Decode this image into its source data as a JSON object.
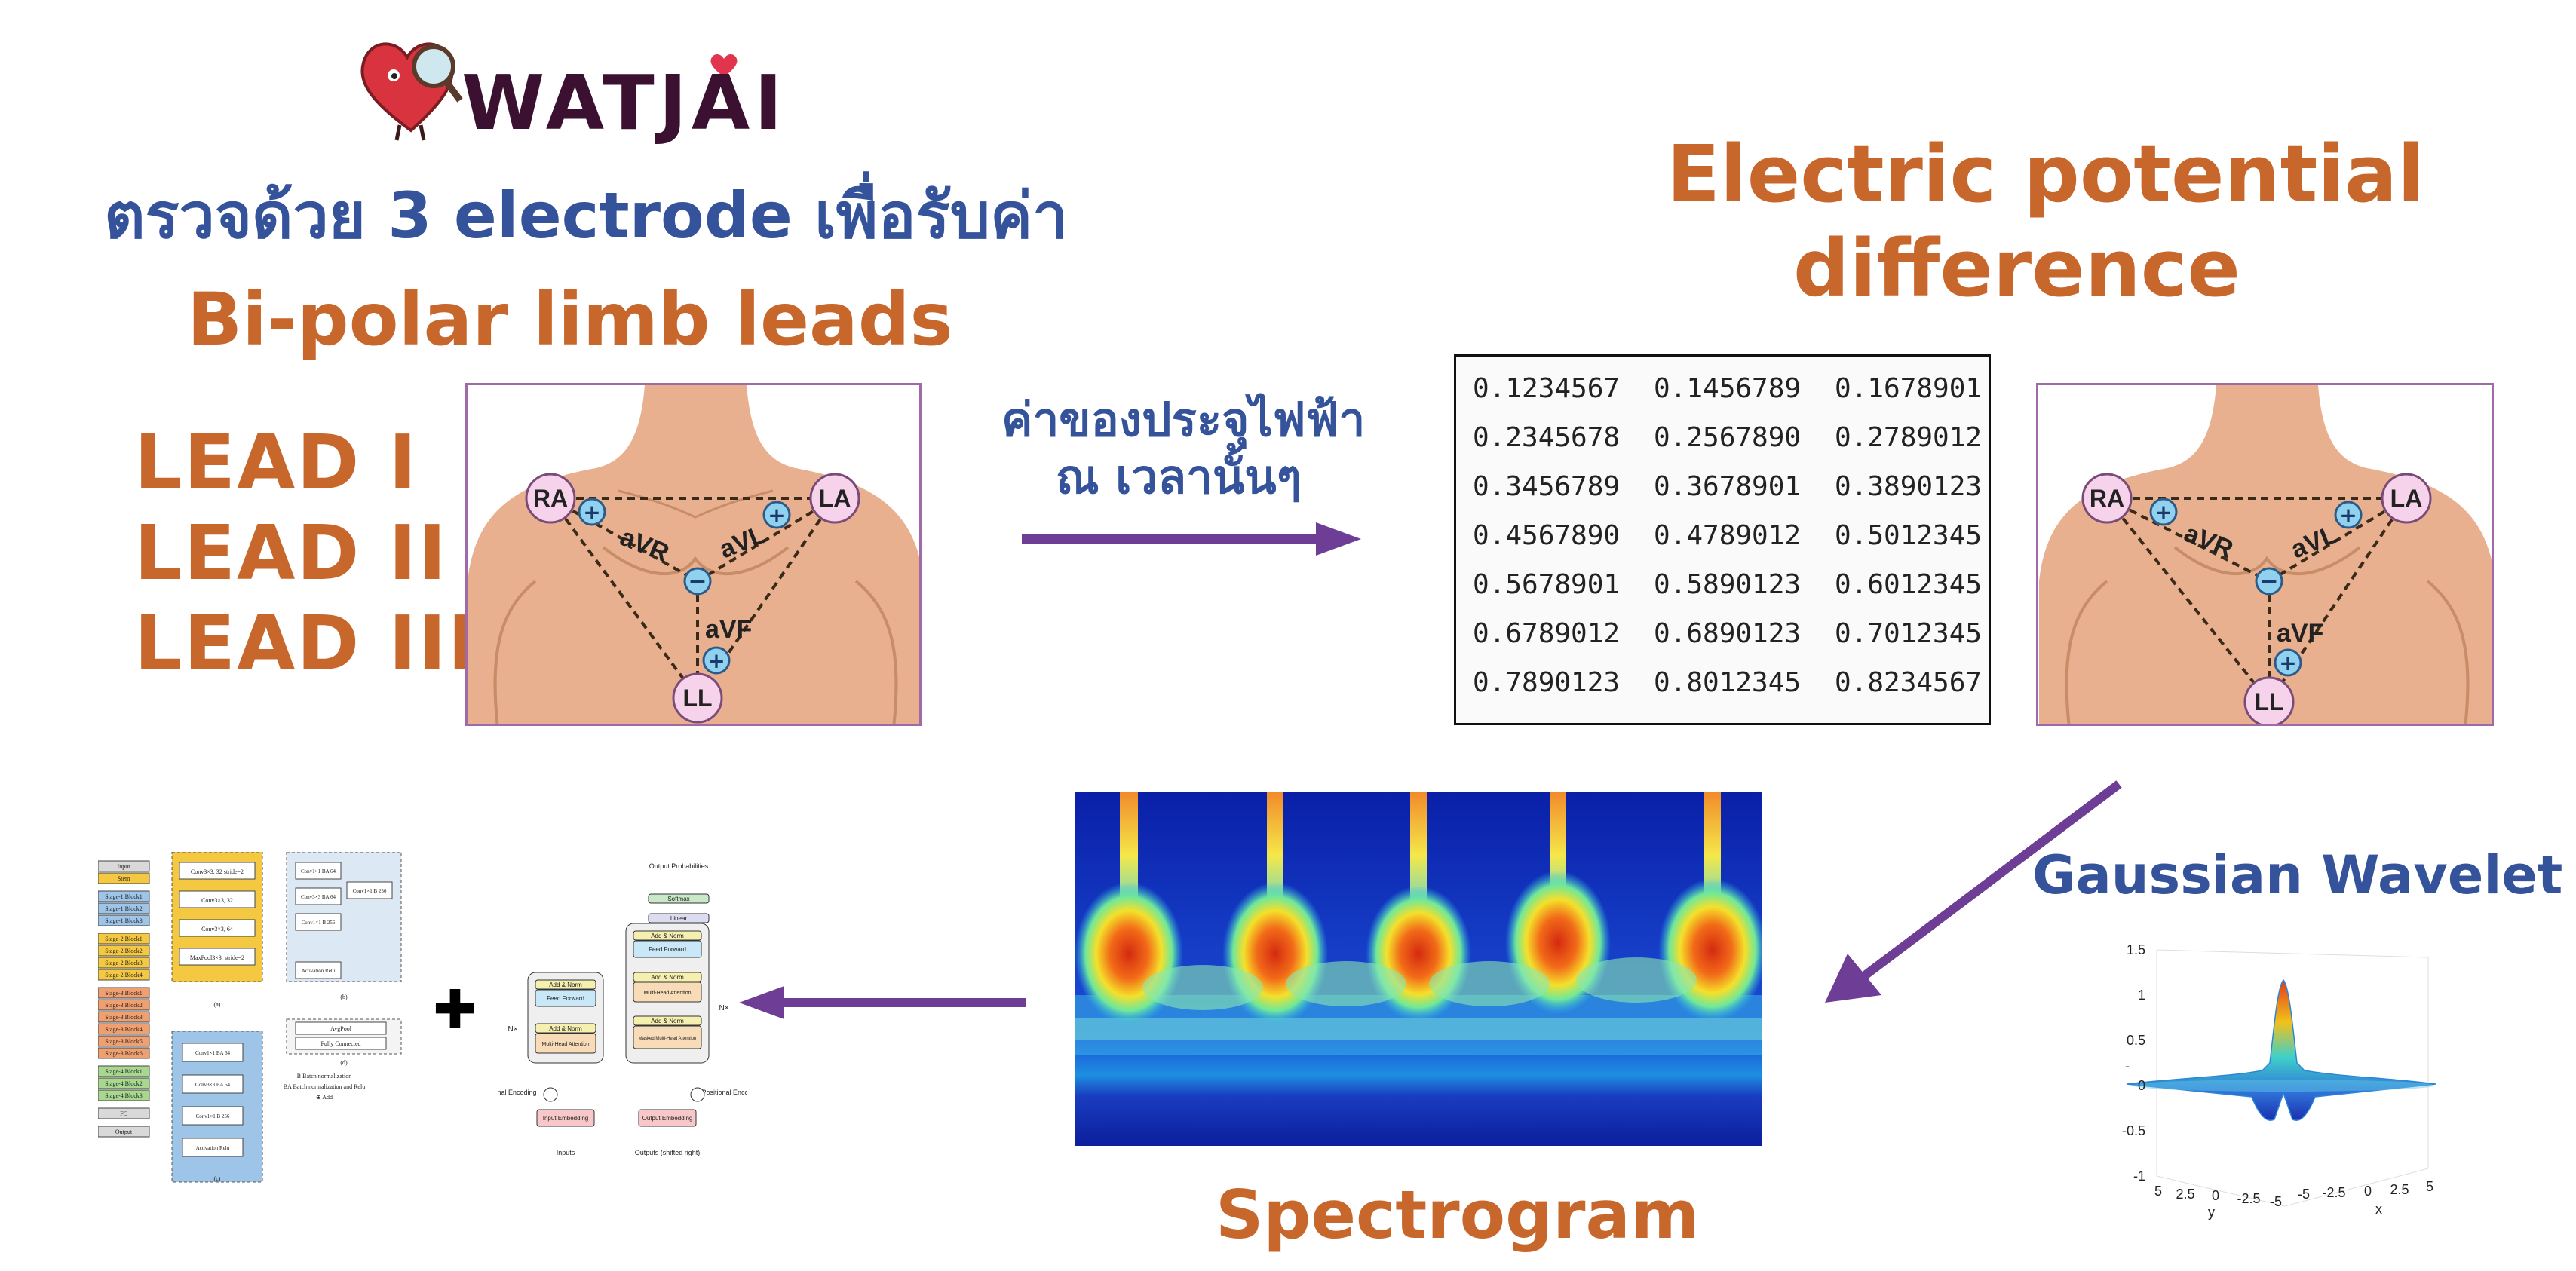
{
  "logo": {
    "text": "WATJAI"
  },
  "left": {
    "thai_line": "ตรวจด้วย 3 electrode เพื่อรับค่า",
    "bipolar": "Bi-polar limb leads",
    "leads": [
      "LEAD  I",
      "LEAD  II",
      "LEAD  III"
    ]
  },
  "chest_labels": {
    "ra": "RA",
    "la": "LA",
    "ll": "LL",
    "avr": "aVR",
    "avl": "aVL",
    "avf": "aVF"
  },
  "arrow_caption": {
    "line1": "ค่าของประจุไฟฟ้า",
    "line2": "ณ เวลานั้นๆ"
  },
  "right_title": {
    "line1": "Electric potential",
    "line2": "difference"
  },
  "table": {
    "rows": [
      [
        "0.1234567",
        "0.1456789",
        "0.1678901"
      ],
      [
        "0.2345678",
        "0.2567890",
        "0.2789012"
      ],
      [
        "0.3456789",
        "0.3678901",
        "0.3890123"
      ],
      [
        "0.4567890",
        "0.4789012",
        "0.5012345"
      ],
      [
        "0.5678901",
        "0.5890123",
        "0.6012345"
      ],
      [
        "0.6789012",
        "0.6890123",
        "0.7012345"
      ],
      [
        "0.7890123",
        "0.8012345",
        "0.8234567"
      ]
    ]
  },
  "gaussian": {
    "title": "Gaussian Wavelet",
    "z_ticks": [
      "1.5",
      "1",
      "0.5",
      "0",
      "-0.5",
      "-1"
    ],
    "y_ticks": [
      "5",
      "2.5",
      "0",
      "-2.5",
      "-5"
    ],
    "x_ticks": [
      "-5",
      "-2.5",
      "0",
      "2.5",
      "5"
    ],
    "y_label": "y",
    "x_label": "x",
    "z_label": "-"
  },
  "spectrogram_label": "Spectrogram",
  "cnn": {
    "col_a": [
      "Input",
      "Stem",
      "Stage-1 Block1",
      "Stage-1 Block2",
      "Stage-1 Block3",
      "Stage-2 Block1",
      "Stage-2 Block2",
      "Stage-2 Block3",
      "Stage-2 Block4",
      "Stage-3 Block1",
      "Stage-3 Block2",
      "Stage-3 Block3",
      "Stage-3 Block4",
      "Stage-3 Block5",
      "Stage-3 Block6",
      "Stage-4 Block1",
      "Stage-4 Block2",
      "Stage-4 Block3",
      "FC",
      "Output"
    ],
    "col_b_top": [
      "Conv3×3, 32 stride=2",
      "Conv3×3, 32",
      "Conv3×3, 64",
      "MaxPool3×3, stride=2"
    ],
    "col_b_bottom": [
      "Conv1×1 BA 64",
      "Conv3×3 BA 64",
      "Conv1×1 B 256",
      "Activation Relu"
    ],
    "col_c_top": [
      "Conv1×1 BA 64",
      "Conv3×3 BA 64",
      "Conv1×1 B 256",
      "Conv1×1 B 256",
      "Activation Relu"
    ],
    "col_c_bottom": [
      "AvgPool",
      "Fully Connected"
    ],
    "legend": [
      "B  Batch normalization",
      "BA  Batch normalization and Relu",
      "⊕  Add"
    ],
    "captions": [
      "(a)",
      "(b)",
      "(c)",
      "(d)"
    ]
  },
  "transformer": {
    "output_probs": "Output Probabilities",
    "softmax": "Softmax",
    "linear": "Linear",
    "add_norm": "Add & Norm",
    "feed_forward": "Feed Forward",
    "multi_head": "Multi-Head Attention",
    "masked": "Masked Multi-Head Attention",
    "nx": "N×",
    "pos_enc": "Positional Encoding",
    "input_emb": "Input Embedding",
    "output_emb": "Output Embedding",
    "inputs": "Inputs",
    "outputs": "Outputs (shifted right)"
  },
  "colors": {
    "orange": "#c8672c",
    "blue": "#35539a",
    "arrow": "#6e3d95",
    "frame": "#a06aa8"
  }
}
